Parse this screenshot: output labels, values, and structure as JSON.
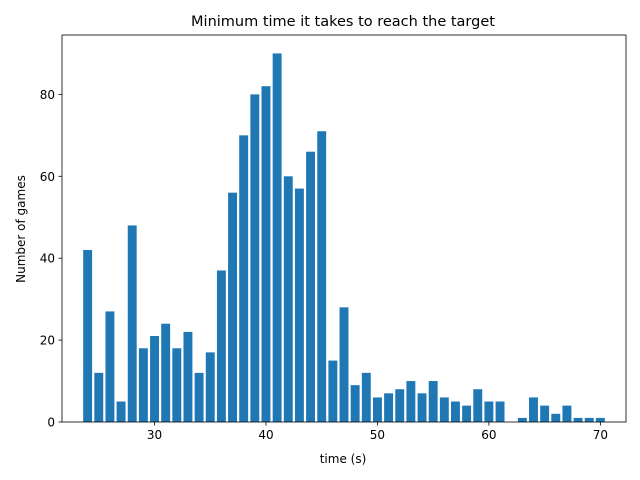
{
  "chart_data": {
    "type": "bar",
    "title": "Minimum time it takes to reach the target",
    "xlabel": "time (s)",
    "ylabel": "Number of games",
    "xlim": [
      21.7,
      72.3
    ],
    "ylim": [
      0,
      94.5
    ],
    "x_ticks": [
      30,
      40,
      50,
      60,
      70
    ],
    "y_ticks": [
      0,
      20,
      40,
      60,
      80
    ],
    "bar_color": "#1f77b4",
    "bar_width": 0.8,
    "grid": false,
    "x": [
      24,
      25,
      26,
      27,
      28,
      29,
      30,
      31,
      32,
      33,
      34,
      35,
      36,
      37,
      38,
      39,
      40,
      41,
      42,
      43,
      44,
      45,
      46,
      47,
      48,
      49,
      50,
      51,
      52,
      53,
      54,
      55,
      56,
      57,
      58,
      59,
      60,
      61,
      63,
      64,
      65,
      66,
      67,
      68,
      69,
      70
    ],
    "values": [
      42,
      12,
      27,
      5,
      48,
      18,
      21,
      24,
      18,
      22,
      12,
      17,
      37,
      56,
      70,
      80,
      82,
      90,
      60,
      57,
      66,
      71,
      15,
      28,
      9,
      12,
      6,
      7,
      8,
      10,
      7,
      10,
      6,
      5,
      4,
      8,
      5,
      5,
      1,
      6,
      4,
      2,
      4,
      1,
      1,
      1
    ]
  }
}
